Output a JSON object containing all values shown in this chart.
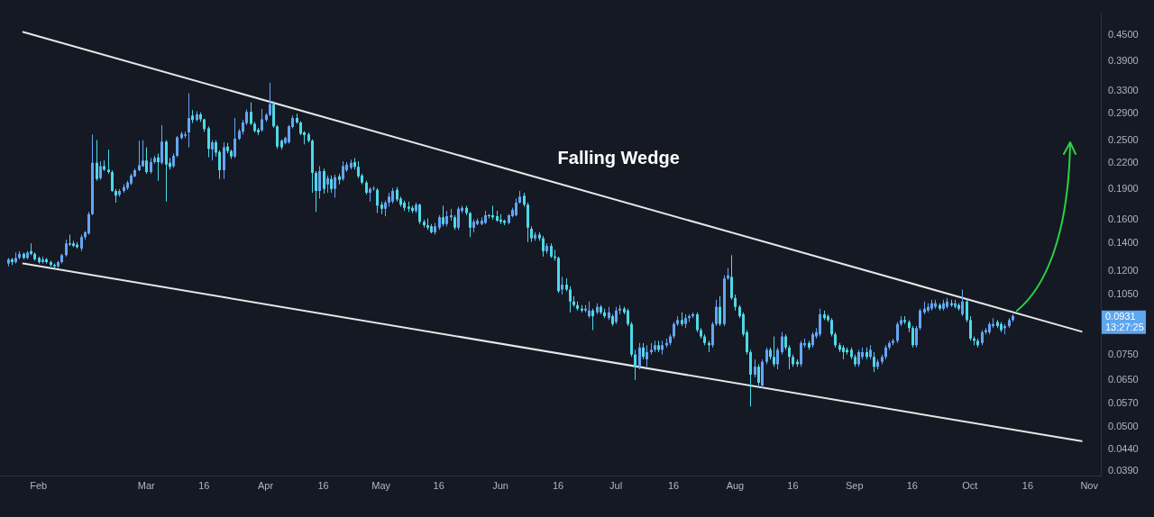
{
  "chart_data": {
    "type": "candlestick",
    "x": [
      "--01-24",
      "--01-25",
      "--01-26",
      "--01-27",
      "--01-28",
      "--01-29",
      "--01-30",
      "--01-31",
      "--02-01",
      "--02-02",
      "--02-03",
      "--02-04",
      "--02-05",
      "--02-06",
      "--02-07",
      "--02-08",
      "--02-09",
      "--02-10",
      "--02-11",
      "--02-12",
      "--02-13",
      "--02-14",
      "--02-15",
      "--02-16",
      "--02-17",
      "--02-18",
      "--02-19",
      "--02-20",
      "--02-21",
      "--02-22",
      "--02-23",
      "--02-24",
      "--02-25",
      "--02-26",
      "--02-27",
      "--02-28",
      "--03-01",
      "--03-02",
      "--03-03",
      "--03-04",
      "--03-05",
      "--03-06",
      "--03-07",
      "--03-08",
      "--03-09",
      "--03-10",
      "--03-11",
      "--03-12",
      "--03-13",
      "--03-14",
      "--03-15",
      "--03-16",
      "--03-17",
      "--03-18",
      "--03-19",
      "--03-20",
      "--03-21",
      "--03-22",
      "--03-23",
      "--03-24",
      "--03-25",
      "--03-26",
      "--03-27",
      "--03-28",
      "--03-29",
      "--03-30",
      "--03-31",
      "--04-01",
      "--04-02",
      "--04-03",
      "--04-04",
      "--04-05",
      "--04-06",
      "--04-07",
      "--04-08",
      "--04-09",
      "--04-10",
      "--04-11",
      "--04-12",
      "--04-13",
      "--04-14",
      "--04-15",
      "--04-16",
      "--04-17",
      "--04-18",
      "--04-19",
      "--04-20",
      "--04-21",
      "--04-22",
      "--04-23",
      "--04-24",
      "--04-25",
      "--04-26",
      "--04-27",
      "--04-28",
      "--04-29",
      "--04-30",
      "--05-01",
      "--05-02",
      "--05-03",
      "--05-04",
      "--05-05",
      "--05-06",
      "--05-07",
      "--05-08",
      "--05-09",
      "--05-10",
      "--05-11",
      "--05-12",
      "--05-13",
      "--05-14",
      "--05-15",
      "--05-16",
      "--05-17",
      "--05-18",
      "--05-19",
      "--05-20",
      "--05-21",
      "--05-22",
      "--05-23",
      "--05-24",
      "--05-25",
      "--05-26",
      "--05-27",
      "--05-28",
      "--05-29",
      "--05-30",
      "--05-31",
      "--06-01",
      "--06-02",
      "--06-03",
      "--06-04",
      "--06-05",
      "--06-06",
      "--06-07",
      "--06-08",
      "--06-09",
      "--06-10",
      "--06-11",
      "--06-12",
      "--06-13",
      "--06-14",
      "--06-15",
      "--06-16",
      "--06-17",
      "--06-18",
      "--06-19",
      "--06-20",
      "--06-21",
      "--06-22",
      "--06-23",
      "--06-24",
      "--06-25",
      "--06-26",
      "--06-27",
      "--06-28",
      "--06-29",
      "--06-30",
      "--07-01",
      "--07-02",
      "--07-03",
      "--07-04",
      "--07-05",
      "--07-06",
      "--07-07",
      "--07-08",
      "--07-09",
      "--07-10",
      "--07-11",
      "--07-12",
      "--07-13",
      "--07-14",
      "--07-15",
      "--07-16",
      "--07-17",
      "--07-18",
      "--07-19",
      "--07-20",
      "--07-21",
      "--07-22",
      "--07-23",
      "--07-24",
      "--07-25",
      "--07-26",
      "--07-27",
      "--07-28",
      "--07-29",
      "--07-30",
      "--07-31",
      "--08-01",
      "--08-02",
      "--08-03",
      "--08-04",
      "--08-05",
      "--08-06",
      "--08-07",
      "--08-08",
      "--08-09",
      "--08-10",
      "--08-11",
      "--08-12",
      "--08-13",
      "--08-14",
      "--08-15",
      "--08-16",
      "--08-17",
      "--08-18",
      "--08-19",
      "--08-20",
      "--08-21",
      "--08-22",
      "--08-23",
      "--08-24",
      "--08-25",
      "--08-26",
      "--08-27",
      "--08-28",
      "--08-29",
      "--08-30",
      "--08-31",
      "--09-01",
      "--09-02",
      "--09-03",
      "--09-04",
      "--09-05",
      "--09-06",
      "--09-07",
      "--09-08",
      "--09-09",
      "--09-10",
      "--09-11",
      "--09-12",
      "--09-13",
      "--09-14",
      "--09-15",
      "--09-16",
      "--09-17",
      "--09-18",
      "--09-19",
      "--09-20",
      "--09-21",
      "--09-22",
      "--09-23",
      "--09-24",
      "--09-25",
      "--09-26",
      "--09-27",
      "--09-28",
      "--09-29",
      "--09-30",
      "--10-01",
      "--10-02",
      "--10-03",
      "--10-04",
      "--10-05",
      "--10-06",
      "--10-07",
      "--10-08",
      "--10-09",
      "--10-10",
      "--10-11",
      "--10-12"
    ],
    "ohlc": [
      [
        0.125,
        0.129,
        0.123,
        0.128
      ],
      [
        0.128,
        0.129,
        0.124,
        0.126
      ],
      [
        0.126,
        0.133,
        0.125,
        0.129
      ],
      [
        0.129,
        0.134,
        0.128,
        0.132
      ],
      [
        0.132,
        0.133,
        0.128,
        0.129
      ],
      [
        0.129,
        0.134,
        0.128,
        0.133
      ],
      [
        0.134,
        0.14,
        0.131,
        0.132
      ],
      [
        0.132,
        0.133,
        0.127,
        0.128
      ],
      [
        0.129,
        0.13,
        0.125,
        0.126
      ],
      [
        0.126,
        0.13,
        0.125,
        0.128
      ],
      [
        0.128,
        0.129,
        0.125,
        0.126
      ],
      [
        0.126,
        0.127,
        0.123,
        0.124
      ],
      [
        0.124,
        0.125,
        0.122,
        0.123
      ],
      [
        0.123,
        0.127,
        0.122,
        0.126
      ],
      [
        0.126,
        0.132,
        0.125,
        0.131
      ],
      [
        0.131,
        0.143,
        0.13,
        0.14
      ],
      [
        0.14,
        0.147,
        0.138,
        0.139
      ],
      [
        0.14,
        0.142,
        0.137,
        0.138
      ],
      [
        0.139,
        0.141,
        0.136,
        0.137
      ],
      [
        0.136,
        0.147,
        0.134,
        0.145
      ],
      [
        0.145,
        0.15,
        0.143,
        0.149
      ],
      [
        0.148,
        0.167,
        0.147,
        0.165
      ],
      [
        0.165,
        0.258,
        0.164,
        0.22
      ],
      [
        0.22,
        0.25,
        0.199,
        0.201
      ],
      [
        0.202,
        0.222,
        0.2,
        0.216
      ],
      [
        0.216,
        0.223,
        0.21,
        0.212
      ],
      [
        0.212,
        0.237,
        0.207,
        0.209
      ],
      [
        0.209,
        0.211,
        0.187,
        0.188
      ],
      [
        0.188,
        0.19,
        0.176,
        0.183
      ],
      [
        0.184,
        0.19,
        0.182,
        0.188
      ],
      [
        0.188,
        0.195,
        0.186,
        0.192
      ],
      [
        0.191,
        0.199,
        0.189,
        0.197
      ],
      [
        0.196,
        0.207,
        0.194,
        0.205
      ],
      [
        0.204,
        0.213,
        0.203,
        0.211
      ],
      [
        0.211,
        0.249,
        0.21,
        0.217
      ],
      [
        0.216,
        0.25,
        0.215,
        0.223
      ],
      [
        0.223,
        0.24,
        0.207,
        0.209
      ],
      [
        0.209,
        0.226,
        0.207,
        0.221
      ],
      [
        0.221,
        0.229,
        0.219,
        0.226
      ],
      [
        0.227,
        0.232,
        0.199,
        0.221
      ],
      [
        0.22,
        0.272,
        0.218,
        0.248
      ],
      [
        0.248,
        0.25,
        0.177,
        0.218
      ],
      [
        0.22,
        0.226,
        0.212,
        0.215
      ],
      [
        0.216,
        0.232,
        0.214,
        0.229
      ],
      [
        0.229,
        0.256,
        0.227,
        0.254
      ],
      [
        0.253,
        0.262,
        0.251,
        0.259
      ],
      [
        0.256,
        0.262,
        0.253,
        0.258
      ],
      [
        0.261,
        0.325,
        0.24,
        0.283
      ],
      [
        0.287,
        0.296,
        0.275,
        0.28
      ],
      [
        0.28,
        0.294,
        0.278,
        0.289
      ],
      [
        0.289,
        0.292,
        0.277,
        0.281
      ],
      [
        0.281,
        0.282,
        0.262,
        0.266
      ],
      [
        0.267,
        0.27,
        0.227,
        0.238
      ],
      [
        0.237,
        0.25,
        0.223,
        0.247
      ],
      [
        0.247,
        0.25,
        0.228,
        0.233
      ],
      [
        0.234,
        0.236,
        0.201,
        0.211
      ],
      [
        0.211,
        0.247,
        0.201,
        0.24
      ],
      [
        0.241,
        0.246,
        0.232,
        0.235
      ],
      [
        0.235,
        0.237,
        0.225,
        0.228
      ],
      [
        0.228,
        0.283,
        0.226,
        0.252
      ],
      [
        0.252,
        0.266,
        0.25,
        0.263
      ],
      [
        0.262,
        0.28,
        0.258,
        0.276
      ],
      [
        0.275,
        0.297,
        0.272,
        0.293
      ],
      [
        0.293,
        0.309,
        0.272,
        0.274
      ],
      [
        0.274,
        0.277,
        0.261,
        0.263
      ],
      [
        0.265,
        0.268,
        0.257,
        0.261
      ],
      [
        0.264,
        0.298,
        0.262,
        0.281
      ],
      [
        0.28,
        0.291,
        0.277,
        0.288
      ],
      [
        0.288,
        0.345,
        0.286,
        0.306
      ],
      [
        0.306,
        0.311,
        0.268,
        0.27
      ],
      [
        0.27,
        0.272,
        0.238,
        0.241
      ],
      [
        0.249,
        0.251,
        0.237,
        0.24
      ],
      [
        0.246,
        0.255,
        0.244,
        0.253
      ],
      [
        0.247,
        0.272,
        0.245,
        0.27
      ],
      [
        0.269,
        0.287,
        0.267,
        0.283
      ],
      [
        0.283,
        0.29,
        0.274,
        0.276
      ],
      [
        0.276,
        0.278,
        0.257,
        0.259
      ],
      [
        0.261,
        0.263,
        0.244,
        0.257
      ],
      [
        0.258,
        0.261,
        0.247,
        0.249
      ],
      [
        0.249,
        0.251,
        0.186,
        0.208
      ],
      [
        0.208,
        0.21,
        0.167,
        0.188
      ],
      [
        0.188,
        0.216,
        0.18,
        0.21
      ],
      [
        0.21,
        0.213,
        0.185,
        0.19
      ],
      [
        0.195,
        0.205,
        0.186,
        0.202
      ],
      [
        0.201,
        0.205,
        0.186,
        0.19
      ],
      [
        0.19,
        0.206,
        0.181,
        0.203
      ],
      [
        0.204,
        0.207,
        0.195,
        0.2
      ],
      [
        0.201,
        0.222,
        0.199,
        0.216
      ],
      [
        0.211,
        0.221,
        0.209,
        0.218
      ],
      [
        0.214,
        0.224,
        0.212,
        0.22
      ],
      [
        0.221,
        0.226,
        0.212,
        0.215
      ],
      [
        0.215,
        0.222,
        0.202,
        0.204
      ],
      [
        0.205,
        0.207,
        0.195,
        0.197
      ],
      [
        0.197,
        0.199,
        0.184,
        0.186
      ],
      [
        0.186,
        0.192,
        0.177,
        0.19
      ],
      [
        0.19,
        0.193,
        0.188,
        0.191
      ],
      [
        0.189,
        0.191,
        0.166,
        0.173
      ],
      [
        0.174,
        0.177,
        0.165,
        0.17
      ],
      [
        0.17,
        0.178,
        0.163,
        0.176
      ],
      [
        0.176,
        0.186,
        0.172,
        0.182
      ],
      [
        0.177,
        0.191,
        0.175,
        0.188
      ],
      [
        0.189,
        0.192,
        0.177,
        0.179
      ],
      [
        0.18,
        0.182,
        0.172,
        0.174
      ],
      [
        0.176,
        0.178,
        0.168,
        0.171
      ],
      [
        0.172,
        0.177,
        0.167,
        0.17
      ],
      [
        0.171,
        0.173,
        0.166,
        0.168
      ],
      [
        0.168,
        0.176,
        0.166,
        0.174
      ],
      [
        0.174,
        0.175,
        0.156,
        0.158
      ],
      [
        0.158,
        0.16,
        0.153,
        0.155
      ],
      [
        0.155,
        0.161,
        0.151,
        0.153
      ],
      [
        0.154,
        0.156,
        0.148,
        0.149
      ],
      [
        0.149,
        0.157,
        0.147,
        0.154
      ],
      [
        0.153,
        0.164,
        0.151,
        0.162
      ],
      [
        0.162,
        0.173,
        0.154,
        0.156
      ],
      [
        0.156,
        0.168,
        0.154,
        0.163
      ],
      [
        0.162,
        0.17,
        0.159,
        0.164
      ],
      [
        0.162,
        0.164,
        0.151,
        0.153
      ],
      [
        0.153,
        0.172,
        0.151,
        0.17
      ],
      [
        0.168,
        0.173,
        0.166,
        0.171
      ],
      [
        0.171,
        0.173,
        0.164,
        0.166
      ],
      [
        0.166,
        0.167,
        0.145,
        0.153
      ],
      [
        0.153,
        0.16,
        0.149,
        0.158
      ],
      [
        0.156,
        0.161,
        0.155,
        0.159
      ],
      [
        0.156,
        0.162,
        0.155,
        0.159
      ],
      [
        0.157,
        0.168,
        0.156,
        0.164
      ],
      [
        0.164,
        0.165,
        0.161,
        0.163
      ],
      [
        0.164,
        0.173,
        0.16,
        0.162
      ],
      [
        0.163,
        0.168,
        0.158,
        0.159
      ],
      [
        0.16,
        0.165,
        0.156,
        0.158
      ],
      [
        0.159,
        0.16,
        0.155,
        0.157
      ],
      [
        0.157,
        0.165,
        0.156,
        0.164
      ],
      [
        0.163,
        0.171,
        0.162,
        0.169
      ],
      [
        0.164,
        0.18,
        0.163,
        0.176
      ],
      [
        0.176,
        0.188,
        0.175,
        0.182
      ],
      [
        0.183,
        0.186,
        0.172,
        0.174
      ],
      [
        0.174,
        0.176,
        0.141,
        0.153
      ],
      [
        0.152,
        0.154,
        0.141,
        0.144
      ],
      [
        0.144,
        0.149,
        0.142,
        0.147
      ],
      [
        0.147,
        0.149,
        0.142,
        0.144
      ],
      [
        0.144,
        0.146,
        0.13,
        0.134
      ],
      [
        0.134,
        0.14,
        0.132,
        0.138
      ],
      [
        0.138,
        0.14,
        0.129,
        0.13
      ],
      [
        0.13,
        0.135,
        0.127,
        0.129
      ],
      [
        0.129,
        0.13,
        0.106,
        0.107
      ],
      [
        0.108,
        0.116,
        0.105,
        0.111
      ],
      [
        0.111,
        0.115,
        0.107,
        0.108
      ],
      [
        0.108,
        0.11,
        0.095,
        0.101
      ],
      [
        0.101,
        0.104,
        0.098,
        0.099
      ],
      [
        0.099,
        0.101,
        0.096,
        0.097
      ],
      [
        0.097,
        0.099,
        0.095,
        0.096
      ],
      [
        0.096,
        0.099,
        0.095,
        0.097
      ],
      [
        0.093,
        0.101,
        0.092,
        0.096
      ],
      [
        0.096,
        0.097,
        0.086,
        0.093
      ],
      [
        0.095,
        0.1,
        0.094,
        0.098
      ],
      [
        0.098,
        0.099,
        0.094,
        0.095
      ],
      [
        0.095,
        0.097,
        0.092,
        0.093
      ],
      [
        0.092,
        0.098,
        0.091,
        0.095
      ],
      [
        0.093,
        0.094,
        0.088,
        0.089
      ],
      [
        0.09,
        0.098,
        0.089,
        0.096
      ],
      [
        0.096,
        0.099,
        0.094,
        0.097
      ],
      [
        0.097,
        0.098,
        0.094,
        0.095
      ],
      [
        0.096,
        0.097,
        0.088,
        0.089
      ],
      [
        0.089,
        0.09,
        0.074,
        0.075
      ],
      [
        0.075,
        0.077,
        0.065,
        0.07
      ],
      [
        0.07,
        0.08,
        0.069,
        0.078
      ],
      [
        0.078,
        0.08,
        0.073,
        0.074
      ],
      [
        0.073,
        0.079,
        0.07,
        0.076
      ],
      [
        0.076,
        0.08,
        0.075,
        0.077
      ],
      [
        0.077,
        0.081,
        0.076,
        0.079
      ],
      [
        0.079,
        0.081,
        0.076,
        0.077
      ],
      [
        0.077,
        0.081,
        0.075,
        0.079
      ],
      [
        0.079,
        0.082,
        0.078,
        0.08
      ],
      [
        0.08,
        0.084,
        0.079,
        0.083
      ],
      [
        0.083,
        0.09,
        0.082,
        0.089
      ],
      [
        0.089,
        0.093,
        0.088,
        0.091
      ],
      [
        0.091,
        0.095,
        0.088,
        0.089
      ],
      [
        0.089,
        0.094,
        0.087,
        0.092
      ],
      [
        0.092,
        0.094,
        0.09,
        0.093
      ],
      [
        0.093,
        0.095,
        0.092,
        0.094
      ],
      [
        0.094,
        0.095,
        0.085,
        0.086
      ],
      [
        0.086,
        0.087,
        0.082,
        0.083
      ],
      [
        0.083,
        0.084,
        0.079,
        0.08
      ],
      [
        0.08,
        0.081,
        0.076,
        0.079
      ],
      [
        0.079,
        0.09,
        0.078,
        0.089
      ],
      [
        0.089,
        0.102,
        0.088,
        0.098
      ],
      [
        0.098,
        0.104,
        0.088,
        0.089
      ],
      [
        0.089,
        0.117,
        0.088,
        0.115
      ],
      [
        0.115,
        0.122,
        0.114,
        0.117
      ],
      [
        0.116,
        0.131,
        0.102,
        0.103
      ],
      [
        0.103,
        0.105,
        0.096,
        0.098
      ],
      [
        0.098,
        0.099,
        0.092,
        0.093
      ],
      [
        0.094,
        0.095,
        0.083,
        0.084
      ],
      [
        0.085,
        0.086,
        0.075,
        0.076
      ],
      [
        0.076,
        0.077,
        0.056,
        0.067
      ],
      [
        0.067,
        0.073,
        0.066,
        0.07
      ],
      [
        0.07,
        0.071,
        0.063,
        0.064
      ],
      [
        0.063,
        0.073,
        0.062,
        0.072
      ],
      [
        0.072,
        0.078,
        0.071,
        0.077
      ],
      [
        0.077,
        0.078,
        0.073,
        0.074
      ],
      [
        0.074,
        0.083,
        0.07,
        0.071
      ],
      [
        0.071,
        0.078,
        0.069,
        0.077
      ],
      [
        0.076,
        0.085,
        0.075,
        0.083
      ],
      [
        0.083,
        0.084,
        0.077,
        0.078
      ],
      [
        0.078,
        0.079,
        0.069,
        0.074
      ],
      [
        0.074,
        0.075,
        0.07,
        0.071
      ],
      [
        0.072,
        0.073,
        0.07,
        0.071
      ],
      [
        0.071,
        0.081,
        0.07,
        0.08
      ],
      [
        0.079,
        0.082,
        0.078,
        0.08
      ],
      [
        0.08,
        0.081,
        0.077,
        0.078
      ],
      [
        0.079,
        0.085,
        0.078,
        0.084
      ],
      [
        0.083,
        0.087,
        0.082,
        0.085
      ],
      [
        0.084,
        0.097,
        0.083,
        0.094
      ],
      [
        0.094,
        0.096,
        0.091,
        0.092
      ],
      [
        0.093,
        0.094,
        0.09,
        0.091
      ],
      [
        0.091,
        0.092,
        0.083,
        0.084
      ],
      [
        0.084,
        0.085,
        0.078,
        0.079
      ],
      [
        0.079,
        0.08,
        0.076,
        0.077
      ],
      [
        0.078,
        0.079,
        0.073,
        0.076
      ],
      [
        0.077,
        0.078,
        0.075,
        0.076
      ],
      [
        0.077,
        0.078,
        0.073,
        0.074
      ],
      [
        0.074,
        0.075,
        0.07,
        0.071
      ],
      [
        0.071,
        0.077,
        0.07,
        0.076
      ],
      [
        0.074,
        0.078,
        0.073,
        0.076
      ],
      [
        0.076,
        0.078,
        0.073,
        0.074
      ],
      [
        0.074,
        0.079,
        0.073,
        0.077
      ],
      [
        0.074,
        0.076,
        0.068,
        0.07
      ],
      [
        0.07,
        0.073,
        0.069,
        0.072
      ],
      [
        0.072,
        0.075,
        0.071,
        0.074
      ],
      [
        0.074,
        0.079,
        0.073,
        0.078
      ],
      [
        0.078,
        0.081,
        0.077,
        0.08
      ],
      [
        0.08,
        0.082,
        0.079,
        0.081
      ],
      [
        0.081,
        0.09,
        0.08,
        0.089
      ],
      [
        0.089,
        0.093,
        0.088,
        0.091
      ],
      [
        0.091,
        0.093,
        0.089,
        0.09
      ],
      [
        0.09,
        0.091,
        0.085,
        0.087
      ],
      [
        0.087,
        0.088,
        0.078,
        0.079
      ],
      [
        0.079,
        0.088,
        0.078,
        0.087
      ],
      [
        0.087,
        0.097,
        0.086,
        0.096
      ],
      [
        0.095,
        0.101,
        0.094,
        0.097
      ],
      [
        0.096,
        0.1,
        0.095,
        0.098
      ],
      [
        0.097,
        0.102,
        0.096,
        0.1
      ],
      [
        0.098,
        0.102,
        0.097,
        0.1
      ],
      [
        0.099,
        0.1,
        0.096,
        0.097
      ],
      [
        0.097,
        0.102,
        0.096,
        0.1
      ],
      [
        0.098,
        0.103,
        0.097,
        0.101
      ],
      [
        0.1,
        0.102,
        0.098,
        0.099
      ],
      [
        0.098,
        0.102,
        0.097,
        0.1
      ],
      [
        0.099,
        0.1,
        0.096,
        0.097
      ],
      [
        0.094,
        0.108,
        0.093,
        0.101
      ],
      [
        0.101,
        0.102,
        0.09,
        0.091
      ],
      [
        0.091,
        0.093,
        0.081,
        0.082
      ],
      [
        0.082,
        0.083,
        0.079,
        0.081
      ],
      [
        0.081,
        0.082,
        0.078,
        0.079
      ],
      [
        0.08,
        0.086,
        0.079,
        0.085
      ],
      [
        0.085,
        0.087,
        0.084,
        0.086
      ],
      [
        0.085,
        0.09,
        0.084,
        0.089
      ],
      [
        0.088,
        0.092,
        0.087,
        0.089
      ],
      [
        0.09,
        0.091,
        0.087,
        0.088
      ],
      [
        0.089,
        0.09,
        0.085,
        0.086
      ],
      [
        0.087,
        0.089,
        0.084,
        0.088
      ],
      [
        0.088,
        0.092,
        0.087,
        0.091
      ],
      [
        0.091,
        0.094,
        0.09,
        0.0931
      ]
    ],
    "colors": [
      "#64a5f5",
      "#4dd9e6",
      "#64a5f5",
      "#64a5f5",
      "#4dd9e6",
      "#64a5f5",
      "#4dd9e6",
      "#4dd9e6",
      "#4dd9e6",
      "#64a5f5",
      "#4dd9e6",
      "#4dd9e6",
      "#4dd9e6",
      "#64a5f5",
      "#64a5f5",
      "#64a5f5",
      "#4dd9e6",
      "#4dd9e6",
      "#4dd9e6",
      "#64a5f5",
      "#64a5f5",
      "#64a5f5",
      "#64a5f5",
      "#4dd9e6",
      "#64a5f5",
      "#4dd9e6",
      "#4dd9e6",
      "#4dd9e6",
      "#4dd9e6",
      "#64a5f5",
      "#64a5f5",
      "#64a5f5",
      "#64a5f5",
      "#64a5f5",
      "#64a5f5",
      "#64a5f5",
      "#4dd9e6",
      "#64a5f5",
      "#64a5f5",
      "#4dd9e6",
      "#64a5f5",
      "#4dd9e6",
      "#4dd9e6",
      "#64a5f5",
      "#64a5f5",
      "#64a5f5",
      "#64a5f5",
      "#64a5f5",
      "#4dd9e6",
      "#64a5f5",
      "#4dd9e6",
      "#4dd9e6",
      "#4dd9e6",
      "#64a5f5",
      "#4dd9e6",
      "#4dd9e6",
      "#64a5f5",
      "#4dd9e6",
      "#4dd9e6",
      "#64a5f5",
      "#64a5f5",
      "#64a5f5",
      "#64a5f5",
      "#4dd9e6",
      "#4dd9e6",
      "#4dd9e6",
      "#64a5f5",
      "#64a5f5",
      "#64a5f5",
      "#4dd9e6",
      "#4dd9e6",
      "#4dd9e6",
      "#64a5f5",
      "#64a5f5",
      "#64a5f5",
      "#4dd9e6",
      "#4dd9e6",
      "#4dd9e6",
      "#4dd9e6",
      "#4dd9e6",
      "#4dd9e6",
      "#64a5f5",
      "#4dd9e6",
      "#64a5f5",
      "#4dd9e6",
      "#64a5f5",
      "#4dd9e6",
      "#64a5f5",
      "#64a5f5",
      "#64a5f5",
      "#4dd9e6",
      "#4dd9e6",
      "#4dd9e6",
      "#4dd9e6",
      "#64a5f5",
      "#64a5f5",
      "#4dd9e6",
      "#4dd9e6",
      "#64a5f5",
      "#64a5f5",
      "#64a5f5",
      "#4dd9e6",
      "#4dd9e6",
      "#4dd9e6",
      "#4dd9e6",
      "#4dd9e6",
      "#64a5f5",
      "#4dd9e6",
      "#4dd9e6",
      "#4dd9e6",
      "#4dd9e6",
      "#64a5f5",
      "#64a5f5",
      "#4dd9e6",
      "#64a5f5",
      "#64a5f5",
      "#4dd9e6",
      "#64a5f5",
      "#64a5f5",
      "#4dd9e6",
      "#4dd9e6",
      "#64a5f5",
      "#64a5f5",
      "#64a5f5",
      "#64a5f5",
      "#4dd9e6",
      "#4dd9e6",
      "#4dd9e6",
      "#4dd9e6",
      "#4dd9e6",
      "#64a5f5",
      "#64a5f5",
      "#64a5f5",
      "#64a5f5",
      "#4dd9e6",
      "#4dd9e6",
      "#4dd9e6",
      "#64a5f5",
      "#4dd9e6",
      "#4dd9e6",
      "#64a5f5",
      "#4dd9e6",
      "#4dd9e6",
      "#4dd9e6",
      "#64a5f5",
      "#4dd9e6",
      "#4dd9e6",
      "#4dd9e6",
      "#4dd9e6",
      "#4dd9e6",
      "#64a5f5",
      "#64a5f5",
      "#4dd9e6",
      "#64a5f5",
      "#4dd9e6",
      "#4dd9e6",
      "#64a5f5",
      "#4dd9e6",
      "#64a5f5",
      "#64a5f5",
      "#4dd9e6",
      "#4dd9e6",
      "#4dd9e6",
      "#4dd9e6",
      "#64a5f5",
      "#4dd9e6",
      "#64a5f5",
      "#64a5f5",
      "#64a5f5",
      "#4dd9e6",
      "#64a5f5",
      "#64a5f5",
      "#64a5f5",
      "#64a5f5",
      "#64a5f5",
      "#4dd9e6",
      "#64a5f5",
      "#64a5f5",
      "#64a5f5",
      "#4dd9e6",
      "#4dd9e6",
      "#4dd9e6",
      "#4dd9e6",
      "#64a5f5",
      "#64a5f5",
      "#4dd9e6",
      "#64a5f5",
      "#64a5f5",
      "#4dd9e6",
      "#4dd9e6",
      "#4dd9e6",
      "#4dd9e6",
      "#4dd9e6",
      "#4dd9e6",
      "#64a5f5",
      "#4dd9e6",
      "#64a5f5",
      "#64a5f5",
      "#4dd9e6",
      "#4dd9e6",
      "#64a5f5",
      "#64a5f5",
      "#4dd9e6",
      "#4dd9e6",
      "#4dd9e6",
      "#4dd9e6",
      "#64a5f5",
      "#64a5f5",
      "#4dd9e6",
      "#64a5f5",
      "#64a5f5",
      "#64a5f5",
      "#4dd9e6",
      "#4dd9e6",
      "#4dd9e6",
      "#4dd9e6",
      "#4dd9e6",
      "#4dd9e6",
      "#4dd9e6",
      "#4dd9e6",
      "#4dd9e6",
      "#64a5f5",
      "#64a5f5",
      "#4dd9e6",
      "#64a5f5",
      "#4dd9e6",
      "#64a5f5",
      "#64a5f5",
      "#64a5f5",
      "#64a5f5",
      "#64a5f5",
      "#64a5f5",
      "#64a5f5",
      "#4dd9e6",
      "#4dd9e6",
      "#4dd9e6",
      "#64a5f5",
      "#64a5f5",
      "#64a5f5",
      "#64a5f5",
      "#64a5f5",
      "#64a5f5",
      "#4dd9e6",
      "#64a5f5",
      "#64a5f5",
      "#4dd9e6",
      "#64a5f5",
      "#4dd9e6",
      "#64a5f5",
      "#4dd9e6",
      "#4dd9e6",
      "#4dd9e6",
      "#4dd9e6",
      "#64a5f5",
      "#64a5f5",
      "#64a5f5",
      "#64a5f5",
      "#4dd9e6",
      "#4dd9e6",
      "#64a5f5",
      "#64a5f5",
      "#64a5f5"
    ],
    "series": [
      {
        "type": "line",
        "x": [
          "--01-28",
          "--10-30"
        ],
        "values": [
          0.459,
          0.0853
        ],
        "color": "#e6e6e6"
      },
      {
        "type": "line",
        "x": [
          "--01-28",
          "--10-30"
        ],
        "values": [
          0.125,
          0.0461
        ],
        "color": "#e6e6e6"
      }
    ],
    "xlim": [
      "--01-22",
      "--11-04"
    ],
    "xticks": [
      {
        "value": "--02-01",
        "label": "Feb"
      },
      {
        "value": "--03-01",
        "label": "Mar"
      },
      {
        "value": "--03-16",
        "label": "16"
      },
      {
        "value": "--04-01",
        "label": "Apr"
      },
      {
        "value": "--04-16",
        "label": "16"
      },
      {
        "value": "--05-01",
        "label": "May"
      },
      {
        "value": "--05-16",
        "label": "16"
      },
      {
        "value": "--06-01",
        "label": "Jun"
      },
      {
        "value": "--06-16",
        "label": "16"
      },
      {
        "value": "--07-01",
        "label": "Jul"
      },
      {
        "value": "--07-16",
        "label": "16"
      },
      {
        "value": "--08-01",
        "label": "Aug"
      },
      {
        "value": "--08-16",
        "label": "16"
      },
      {
        "value": "--09-01",
        "label": "Sep"
      },
      {
        "value": "--09-16",
        "label": "16"
      },
      {
        "value": "--10-01",
        "label": "Oct"
      },
      {
        "value": "--10-16",
        "label": "16"
      },
      {
        "value": "--11-01",
        "label": "Nov"
      }
    ],
    "ylim": [
      0.038,
      0.51
    ],
    "yticks": [
      {
        "value": 0.039,
        "label": "0.0390"
      },
      {
        "value": 0.044,
        "label": "0.0440"
      },
      {
        "value": 0.05,
        "label": "0.0500"
      },
      {
        "value": 0.057,
        "label": "0.0570"
      },
      {
        "value": 0.065,
        "label": "0.0650"
      },
      {
        "value": 0.075,
        "label": "0.0750"
      },
      {
        "value": 0.105,
        "label": "0.1050"
      },
      {
        "value": 0.12,
        "label": "0.1200"
      },
      {
        "value": 0.14,
        "label": "0.1400"
      },
      {
        "value": 0.16,
        "label": "0.1600"
      },
      {
        "value": 0.19,
        "label": "0.1900"
      },
      {
        "value": 0.22,
        "label": "0.2200"
      },
      {
        "value": 0.25,
        "label": "0.2500"
      },
      {
        "value": 0.29,
        "label": "0.2900"
      },
      {
        "value": 0.33,
        "label": "0.3300"
      },
      {
        "value": 0.39,
        "label": "0.3900"
      },
      {
        "value": 0.45,
        "label": "0.4500"
      }
    ],
    "log": true,
    "annotations": [
      "Falling Wedge",
      "0.0931",
      "13:27:25"
    ]
  }
}
